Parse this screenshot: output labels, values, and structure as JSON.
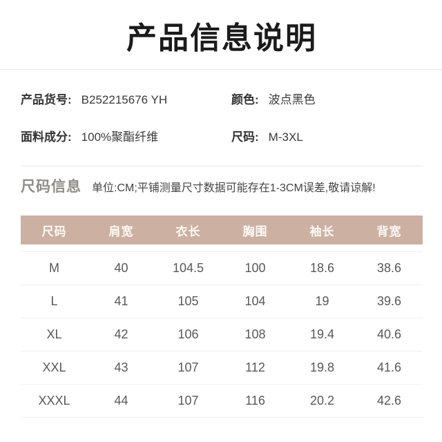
{
  "page": {
    "title": "产品信息说明"
  },
  "product_info": {
    "fields": [
      {
        "label": "产品货号:",
        "value": "B252215676 YH"
      },
      {
        "label": "颜色:",
        "value": "波点黑色"
      },
      {
        "label": "面料成分:",
        "value": "100%聚酯纤维"
      },
      {
        "label": "尺码:",
        "value": "M-3XL"
      }
    ]
  },
  "size_section": {
    "heading": "尺码信息",
    "note": "单位:CM;平铺测量尺寸数据可能存在1-3CM误差,敬请谅解!"
  },
  "size_table": {
    "columns": [
      "尺码",
      "肩宽",
      "衣长",
      "胸围",
      "袖长",
      "背宽"
    ],
    "rows": [
      [
        "M",
        "40",
        "104.5",
        "100",
        "18.6",
        "38.6"
      ],
      [
        "L",
        "41",
        "105",
        "104",
        "19",
        "39.6"
      ],
      [
        "XL",
        "42",
        "106",
        "108",
        "19.4",
        "40.6"
      ],
      [
        "XXL",
        "43",
        "107",
        "112",
        "19.8",
        "41.6"
      ],
      [
        "XXXL",
        "44",
        "107",
        "116",
        "20.2",
        "42.6"
      ]
    ]
  },
  "colors": {
    "header_band": "#ccb1a2",
    "header_band_text": "#fcf8f5",
    "heading_text": "#8f8d88",
    "title_text": "#1b1b1b",
    "body_text": "#383838",
    "table_text": "#585858",
    "divider": "#ececec"
  }
}
